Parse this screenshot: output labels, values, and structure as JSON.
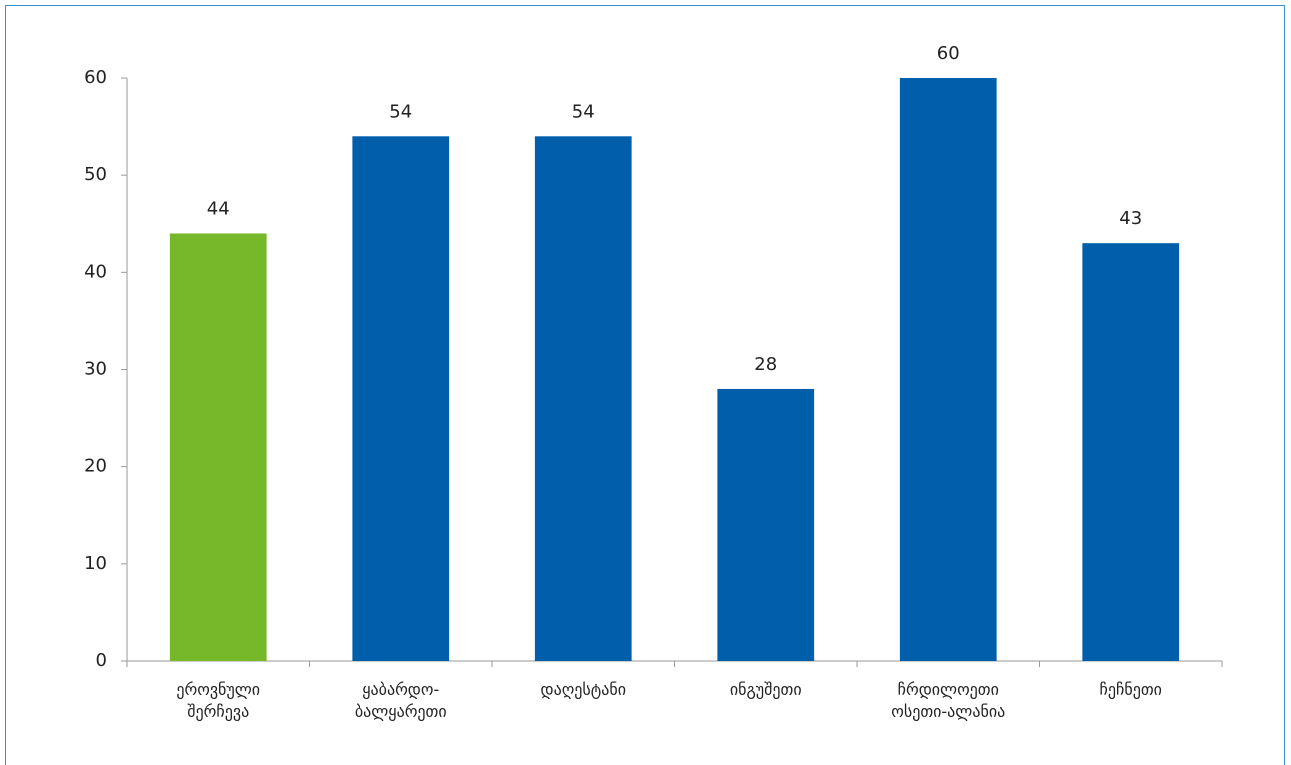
{
  "chart_data": {
    "type": "bar",
    "categories": [
      "ეროვნული შერჩევა",
      "ყაბარდო-ბალყარეთი",
      "დაღესტანი",
      "ინგუშეთი",
      "ჩრდილოეთი ოსეთი-ალანია",
      "ჩეჩნეთი"
    ],
    "values": [
      44,
      54,
      54,
      28,
      60,
      43
    ],
    "colors": [
      "#76b82a",
      "#005eaa",
      "#005eaa",
      "#005eaa",
      "#005eaa",
      "#005eaa"
    ],
    "ylim": [
      0,
      60
    ],
    "yticks": [
      0,
      10,
      20,
      30,
      40,
      50,
      60
    ],
    "grid": false
  }
}
